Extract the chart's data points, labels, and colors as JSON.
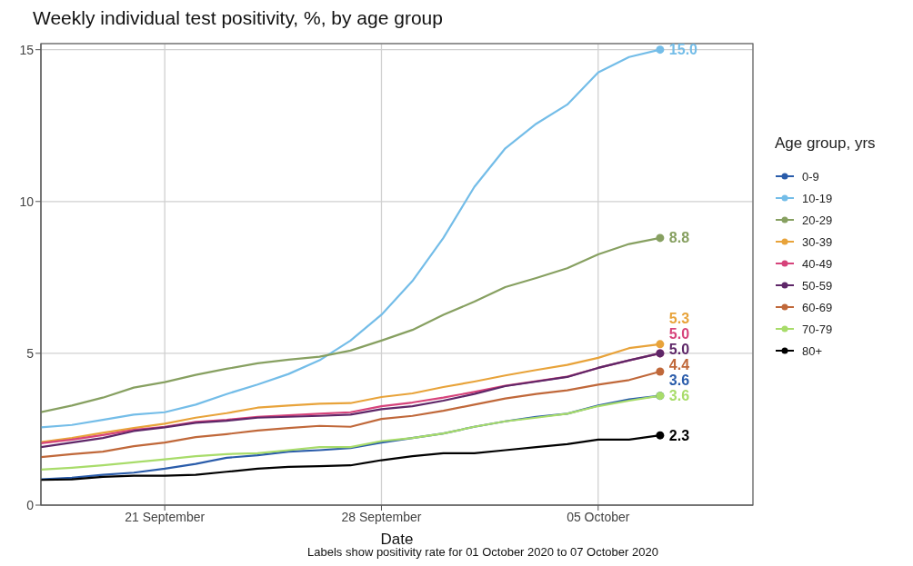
{
  "chart_data": {
    "type": "line",
    "title": "Weekly individual test positivity, %, by age group",
    "xlabel": "Date",
    "legend_title": "Age group, yrs",
    "annotations": [
      "Labels show positivity rate for 01 October 2020 to 07 October 2020"
    ],
    "x": [
      "2020-09-17",
      "2020-09-18",
      "2020-09-19",
      "2020-09-20",
      "2020-09-21",
      "2020-09-22",
      "2020-09-23",
      "2020-09-24",
      "2020-09-25",
      "2020-09-26",
      "2020-09-27",
      "2020-09-28",
      "2020-09-29",
      "2020-09-30",
      "2020-10-01",
      "2020-10-02",
      "2020-10-03",
      "2020-10-04",
      "2020-10-05",
      "2020-10-06",
      "2020-10-07"
    ],
    "series": [
      {
        "name": "0-9",
        "color": "#2a5caa",
        "values": [
          0.85,
          0.9,
          1.0,
          1.07,
          1.2,
          1.36,
          1.56,
          1.64,
          1.76,
          1.81,
          1.88,
          2.06,
          2.21,
          2.36,
          2.58,
          2.76,
          2.91,
          3.01,
          3.28,
          3.48,
          3.6
        ],
        "value_labels": [
          null,
          null,
          null,
          null,
          null,
          null,
          null,
          null,
          null,
          null,
          null,
          null,
          null,
          null,
          null,
          null,
          null,
          null,
          null,
          null,
          "3.6"
        ]
      },
      {
        "name": "10-19",
        "color": "#74bde8",
        "values": [
          2.56,
          2.64,
          2.81,
          2.98,
          3.06,
          3.31,
          3.66,
          3.97,
          4.32,
          4.77,
          5.42,
          6.27,
          7.38,
          8.8,
          10.48,
          11.75,
          12.56,
          13.19,
          14.25,
          14.76,
          15.0
        ],
        "value_labels": [
          null,
          null,
          null,
          null,
          null,
          null,
          null,
          null,
          null,
          null,
          null,
          null,
          null,
          null,
          null,
          null,
          null,
          null,
          null,
          null,
          "15.0"
        ]
      },
      {
        "name": "20-29",
        "color": "#87a061",
        "values": [
          3.06,
          3.28,
          3.54,
          3.87,
          4.05,
          4.29,
          4.49,
          4.67,
          4.79,
          4.89,
          5.09,
          5.42,
          5.77,
          6.27,
          6.7,
          7.18,
          7.48,
          7.8,
          8.26,
          8.6,
          8.8
        ],
        "value_labels": [
          null,
          null,
          null,
          null,
          null,
          null,
          null,
          null,
          null,
          null,
          null,
          null,
          null,
          null,
          null,
          null,
          null,
          null,
          null,
          null,
          "8.8"
        ]
      },
      {
        "name": "30-39",
        "color": "#e8a33a",
        "values": [
          2.08,
          2.21,
          2.38,
          2.54,
          2.68,
          2.88,
          3.03,
          3.21,
          3.28,
          3.34,
          3.36,
          3.56,
          3.68,
          3.89,
          4.07,
          4.27,
          4.45,
          4.62,
          4.85,
          5.17,
          5.3
        ],
        "value_labels": [
          null,
          null,
          null,
          null,
          null,
          null,
          null,
          null,
          null,
          null,
          null,
          null,
          null,
          null,
          null,
          null,
          null,
          null,
          null,
          null,
          "5.3"
        ]
      },
      {
        "name": "40-49",
        "color": "#d6437b",
        "values": [
          2.04,
          2.16,
          2.31,
          2.48,
          2.58,
          2.74,
          2.81,
          2.91,
          2.96,
          3.01,
          3.06,
          3.26,
          3.38,
          3.54,
          3.73,
          3.93,
          4.08,
          4.23,
          4.52,
          4.77,
          5.0
        ],
        "value_labels": [
          null,
          null,
          null,
          null,
          null,
          null,
          null,
          null,
          null,
          null,
          null,
          null,
          null,
          null,
          null,
          null,
          null,
          null,
          null,
          null,
          "5.0"
        ]
      },
      {
        "name": "50-59",
        "color": "#5e2768",
        "values": [
          1.91,
          2.06,
          2.21,
          2.44,
          2.56,
          2.71,
          2.78,
          2.88,
          2.91,
          2.94,
          2.98,
          3.16,
          3.26,
          3.44,
          3.66,
          3.92,
          4.07,
          4.22,
          4.52,
          4.77,
          5.0
        ],
        "value_labels": [
          null,
          null,
          null,
          null,
          null,
          null,
          null,
          null,
          null,
          null,
          null,
          null,
          null,
          null,
          null,
          null,
          null,
          null,
          null,
          null,
          "5.0"
        ]
      },
      {
        "name": "60-69",
        "color": "#c0683a",
        "values": [
          1.58,
          1.68,
          1.76,
          1.94,
          2.06,
          2.24,
          2.34,
          2.46,
          2.54,
          2.61,
          2.58,
          2.84,
          2.94,
          3.11,
          3.31,
          3.51,
          3.66,
          3.78,
          3.97,
          4.12,
          4.4
        ],
        "value_labels": [
          null,
          null,
          null,
          null,
          null,
          null,
          null,
          null,
          null,
          null,
          null,
          null,
          null,
          null,
          null,
          null,
          null,
          null,
          null,
          null,
          "4.4"
        ]
      },
      {
        "name": "70-79",
        "color": "#a8dc6a",
        "values": [
          1.17,
          1.23,
          1.31,
          1.41,
          1.51,
          1.61,
          1.68,
          1.71,
          1.81,
          1.91,
          1.91,
          2.11,
          2.21,
          2.36,
          2.58,
          2.76,
          2.88,
          3.01,
          3.26,
          3.44,
          3.6
        ],
        "value_labels": [
          null,
          null,
          null,
          null,
          null,
          null,
          null,
          null,
          null,
          null,
          null,
          null,
          null,
          null,
          null,
          null,
          null,
          null,
          null,
          null,
          "3.6"
        ]
      },
      {
        "name": "80+",
        "color": "#000000",
        "values": [
          0.83,
          0.85,
          0.93,
          0.97,
          0.97,
          1.0,
          1.1,
          1.2,
          1.26,
          1.28,
          1.31,
          1.48,
          1.61,
          1.71,
          1.71,
          1.81,
          1.91,
          2.01,
          2.16,
          2.16,
          2.3
        ],
        "value_labels": [
          null,
          null,
          null,
          null,
          null,
          null,
          null,
          null,
          null,
          null,
          null,
          null,
          null,
          null,
          null,
          null,
          null,
          null,
          null,
          null,
          "2.3"
        ]
      }
    ],
    "xlim": [
      "2020-09-17",
      "2020-10-10"
    ],
    "xticks": [
      {
        "value": "2020-09-21",
        "label": "21 September"
      },
      {
        "value": "2020-09-28",
        "label": "28 September"
      },
      {
        "value": "2020-10-05",
        "label": "05 October"
      }
    ],
    "ylim": [
      0,
      15.2
    ],
    "yticks": [
      0,
      5,
      10,
      15
    ],
    "grid": true,
    "legend": "right",
    "line_style": "solid"
  }
}
